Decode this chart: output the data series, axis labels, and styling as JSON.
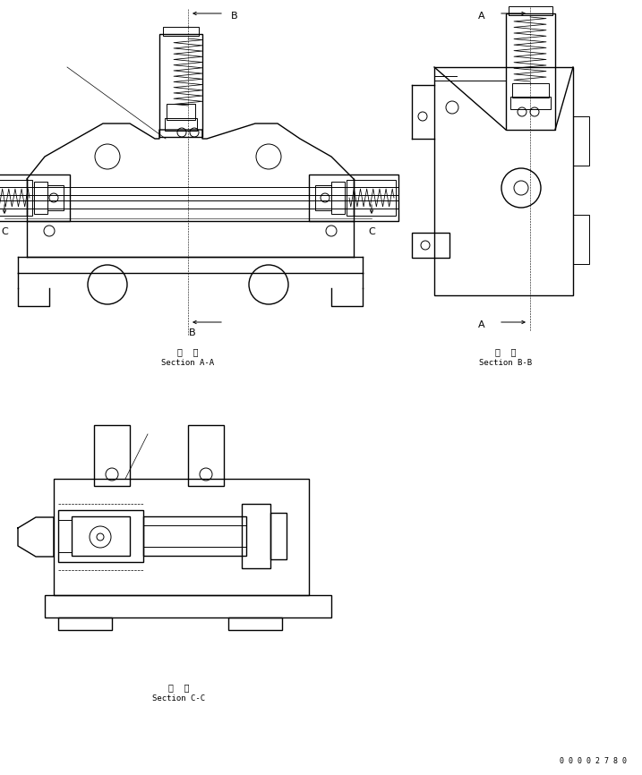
{
  "bg_color": "#ffffff",
  "line_color": "#000000",
  "lw": 0.7,
  "lw2": 1.0,
  "section_aa_kanji": "断  面",
  "section_aa_text": "Section A-A",
  "section_bb_kanji": "断  面",
  "section_bb_text": "Section B-B",
  "section_cc_kanji": "断  面",
  "section_cc_text": "Section C-C",
  "doc_number": "0 0 0 0 2 7 8 0"
}
